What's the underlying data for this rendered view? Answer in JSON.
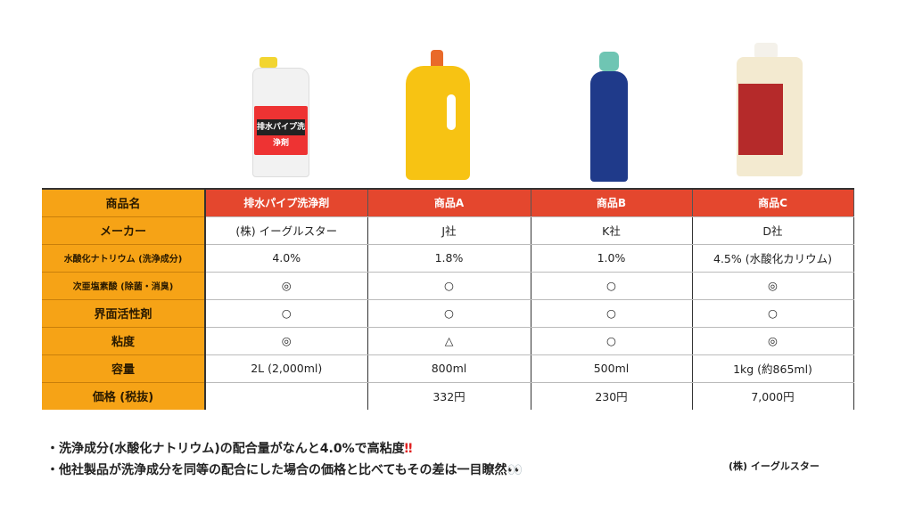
{
  "table": {
    "header": {
      "label": "商品名",
      "products": [
        "排水パイプ洗浄剤",
        "商品A",
        "商品B",
        "商品C"
      ]
    },
    "rows": [
      {
        "label": "メーカー",
        "values": [
          "(株) イーグルスター",
          "J社",
          "K社",
          "D社"
        ]
      },
      {
        "label": "水酸化ナトリウム (洗浄成分)",
        "values": [
          "4.0%",
          "1.8%",
          "1.0%",
          "4.5% (水酸化カリウム)"
        ]
      },
      {
        "label": "次亜塩素酸 (除菌・消臭)",
        "values": [
          "◎",
          "○",
          "○",
          "◎"
        ]
      },
      {
        "label": "界面活性剤",
        "values": [
          "○",
          "○",
          "○",
          "○"
        ]
      },
      {
        "label": "粘度",
        "values": [
          "◎",
          "△",
          "○",
          "◎"
        ]
      },
      {
        "label": "容量",
        "values": [
          "2L (2,000ml)",
          "800ml",
          "500ml",
          "1kg (約865ml)"
        ]
      },
      {
        "label": "価格 (税抜)",
        "values": [
          "",
          "332円",
          "230円",
          "7,000円"
        ]
      }
    ]
  },
  "notes": [
    "・洗浄成分(水酸化ナトリウム)の配合量がなんと4.0%で高粘度",
    "・他社製品が洗浄成分を同等の配合にした場合の価格と比べてもその差は一目瞭然"
  ],
  "note_marks": [
    "‼",
    "👀"
  ],
  "company": "(株) イーグルスター",
  "product_image_label": "排水パイプ洗浄剤",
  "colors": {
    "label_bg": "#f6a316",
    "header_bg": "#e4472e"
  }
}
